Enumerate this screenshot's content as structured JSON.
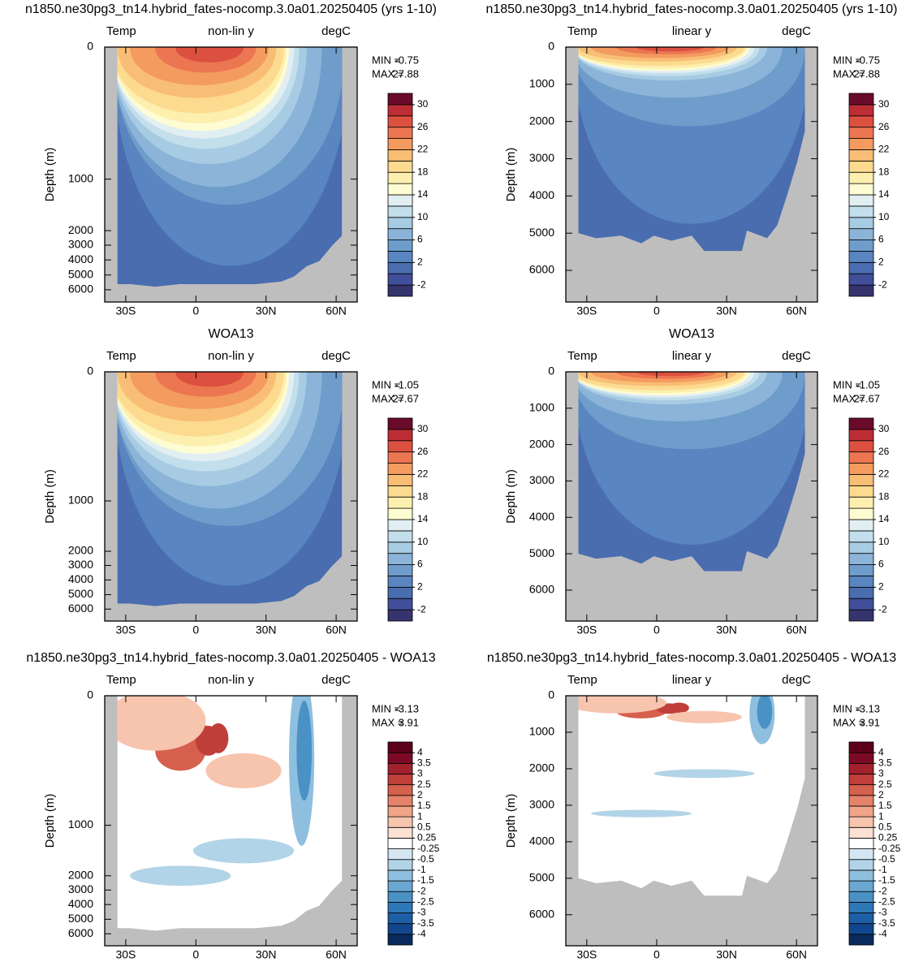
{
  "chart_data": [
    {
      "type": "contour",
      "field": "temperature",
      "y_scale": "non-linear",
      "title": "n1850.ne30pg3_tn14.hybrid_fates-nocomp.3.0a01.20250405 (yrs 1-10)",
      "left_label": "Temp",
      "center_label": "non-lin y",
      "right_label": "degC",
      "ylabel": "Depth (m)",
      "xlim": [
        -39,
        69
      ],
      "xticks": [
        {
          "value": -30,
          "label": "30S"
        },
        0,
        {
          "value": 30,
          "label": "30N"
        },
        {
          "value": 60,
          "label": "60N"
        }
      ],
      "yticks": [
        0,
        1000,
        2000,
        3000,
        4000,
        5000,
        6000
      ],
      "stats": [
        {
          "label": "MIN =",
          "value": -0.75
        },
        {
          "label": "MAX =",
          "value": 27.88
        }
      ],
      "colorbar": {
        "labels": [
          -2,
          2,
          6,
          10,
          14,
          18,
          22,
          26,
          30
        ],
        "colors": [
          "#36346e",
          "#414e9a",
          "#4a6db0",
          "#5985c0",
          "#6f9dcb",
          "#8bb4d8",
          "#a7cbe3",
          "#c3dfec",
          "#e2eff2",
          "#fefcd2",
          "#fdf0ae",
          "#fcda8f",
          "#f8be75",
          "#f49b5f",
          "#ec7651",
          "#dc5040",
          "#bd2d35",
          "#6a0b2a"
        ]
      }
    },
    {
      "type": "contour",
      "field": "temperature",
      "y_scale": "linear",
      "title": "n1850.ne30pg3_tn14.hybrid_fates-nocomp.3.0a01.20250405 (yrs 1-10)",
      "left_label": "Temp",
      "center_label": "linear y",
      "right_label": "degC",
      "ylabel": "Depth (m)",
      "xlim": [
        -39,
        69
      ],
      "xticks": [
        {
          "value": -30,
          "label": "30S"
        },
        0,
        {
          "value": 30,
          "label": "30N"
        },
        {
          "value": 60,
          "label": "60N"
        }
      ],
      "ylim": [
        0,
        6850
      ],
      "yticks": [
        0,
        1000,
        2000,
        3000,
        4000,
        5000,
        6000
      ],
      "stats": [
        {
          "label": "MIN =",
          "value": -0.75
        },
        {
          "label": "MAX =",
          "value": 27.88
        }
      ],
      "colorbar": {
        "labels": [
          -2,
          2,
          6,
          10,
          14,
          18,
          22,
          26,
          30
        ],
        "colors": [
          "#36346e",
          "#414e9a",
          "#4a6db0",
          "#5985c0",
          "#6f9dcb",
          "#8bb4d8",
          "#a7cbe3",
          "#c3dfec",
          "#e2eff2",
          "#fefcd2",
          "#fdf0ae",
          "#fcda8f",
          "#f8be75",
          "#f49b5f",
          "#ec7651",
          "#dc5040",
          "#bd2d35",
          "#6a0b2a"
        ]
      }
    },
    {
      "type": "contour",
      "field": "temperature",
      "y_scale": "non-linear",
      "title": "WOA13",
      "left_label": "Temp",
      "center_label": "non-lin y",
      "right_label": "degC",
      "ylabel": "Depth (m)",
      "xlim": [
        -39,
        69
      ],
      "xticks": [
        {
          "value": -30,
          "label": "30S"
        },
        0,
        {
          "value": 30,
          "label": "30N"
        },
        {
          "value": 60,
          "label": "60N"
        }
      ],
      "yticks": [
        0,
        1000,
        2000,
        3000,
        4000,
        5000,
        6000
      ],
      "stats": [
        {
          "label": "MIN =",
          "value": -1.05
        },
        {
          "label": "MAX =",
          "value": 27.67
        }
      ],
      "colorbar": {
        "labels": [
          -2,
          2,
          6,
          10,
          14,
          18,
          22,
          26,
          30
        ],
        "colors": [
          "#36346e",
          "#414e9a",
          "#4a6db0",
          "#5985c0",
          "#6f9dcb",
          "#8bb4d8",
          "#a7cbe3",
          "#c3dfec",
          "#e2eff2",
          "#fefcd2",
          "#fdf0ae",
          "#fcda8f",
          "#f8be75",
          "#f49b5f",
          "#ec7651",
          "#dc5040",
          "#bd2d35",
          "#6a0b2a"
        ]
      }
    },
    {
      "type": "contour",
      "field": "temperature",
      "y_scale": "linear",
      "title": "WOA13",
      "left_label": "Temp",
      "center_label": "linear y",
      "right_label": "degC",
      "ylabel": "Depth (m)",
      "xlim": [
        -39,
        69
      ],
      "xticks": [
        {
          "value": -30,
          "label": "30S"
        },
        0,
        {
          "value": 30,
          "label": "30N"
        },
        {
          "value": 60,
          "label": "60N"
        }
      ],
      "ylim": [
        0,
        6850
      ],
      "yticks": [
        0,
        1000,
        2000,
        3000,
        4000,
        5000,
        6000
      ],
      "stats": [
        {
          "label": "MIN =",
          "value": -1.05
        },
        {
          "label": "MAX =",
          "value": 27.67
        }
      ],
      "colorbar": {
        "labels": [
          -2,
          2,
          6,
          10,
          14,
          18,
          22,
          26,
          30
        ],
        "colors": [
          "#36346e",
          "#414e9a",
          "#4a6db0",
          "#5985c0",
          "#6f9dcb",
          "#8bb4d8",
          "#a7cbe3",
          "#c3dfec",
          "#e2eff2",
          "#fefcd2",
          "#fdf0ae",
          "#fcda8f",
          "#f8be75",
          "#f49b5f",
          "#ec7651",
          "#dc5040",
          "#bd2d35",
          "#6a0b2a"
        ]
      }
    },
    {
      "type": "contour",
      "field": "difference",
      "y_scale": "non-linear",
      "title": "n1850.ne30pg3_tn14.hybrid_fates-nocomp.3.0a01.20250405 - WOA13",
      "left_label": "Temp",
      "center_label": "non-lin y",
      "right_label": "degC",
      "ylabel": "Depth (m)",
      "xlim": [
        -39,
        69
      ],
      "xticks": [
        {
          "value": -30,
          "label": "30S"
        },
        0,
        {
          "value": 30,
          "label": "30N"
        },
        {
          "value": 60,
          "label": "60N"
        }
      ],
      "yticks": [
        0,
        1000,
        2000,
        3000,
        4000,
        5000,
        6000
      ],
      "stats": [
        {
          "label": "MIN =",
          "value": -3.13
        },
        {
          "label": "MAX =",
          "value": 3.91
        }
      ],
      "colorbar": {
        "labels": [
          -4,
          -3.5,
          -3,
          -2.5,
          -2,
          -1.5,
          -1,
          -0.5,
          -0.25,
          0.25,
          0.5,
          1,
          1.5,
          2,
          2.5,
          3,
          3.5,
          4
        ],
        "colors": [
          "#0b2b5e",
          "#11468e",
          "#1c5fa5",
          "#2e78b8",
          "#4a91c6",
          "#6ba7d2",
          "#8ebfde",
          "#b2d4e8",
          "#d5e6f2",
          "#ffffff",
          "#fbe0d3",
          "#f7c4ae",
          "#f0a488",
          "#e5836a",
          "#d6604e",
          "#c03f3a",
          "#a3212d",
          "#7d0a24",
          "#5c0019"
        ]
      }
    },
    {
      "type": "contour",
      "field": "difference",
      "y_scale": "linear",
      "title": "n1850.ne30pg3_tn14.hybrid_fates-nocomp.3.0a01.20250405 - WOA13",
      "left_label": "Temp",
      "center_label": "linear y",
      "right_label": "degC",
      "ylabel": "Depth (m)",
      "xlim": [
        -39,
        69
      ],
      "xticks": [
        {
          "value": -30,
          "label": "30S"
        },
        0,
        {
          "value": 30,
          "label": "30N"
        },
        {
          "value": 60,
          "label": "60N"
        }
      ],
      "ylim": [
        0,
        6850
      ],
      "yticks": [
        0,
        1000,
        2000,
        3000,
        4000,
        5000,
        6000
      ],
      "stats": [
        {
          "label": "MIN =",
          "value": -3.13
        },
        {
          "label": "MAX =",
          "value": 3.91
        }
      ],
      "colorbar": {
        "labels": [
          -4,
          -3.5,
          -3,
          -2.5,
          -2,
          -1.5,
          -1,
          -0.5,
          -0.25,
          0.25,
          0.5,
          1,
          1.5,
          2,
          2.5,
          3,
          3.5,
          4
        ],
        "colors": [
          "#0b2b5e",
          "#11468e",
          "#1c5fa5",
          "#2e78b8",
          "#4a91c6",
          "#6ba7d2",
          "#8ebfde",
          "#b2d4e8",
          "#d5e6f2",
          "#ffffff",
          "#fbe0d3",
          "#f7c4ae",
          "#f0a488",
          "#e5836a",
          "#d6604e",
          "#c03f3a",
          "#a3212d",
          "#7d0a24",
          "#5c0019"
        ]
      }
    }
  ]
}
